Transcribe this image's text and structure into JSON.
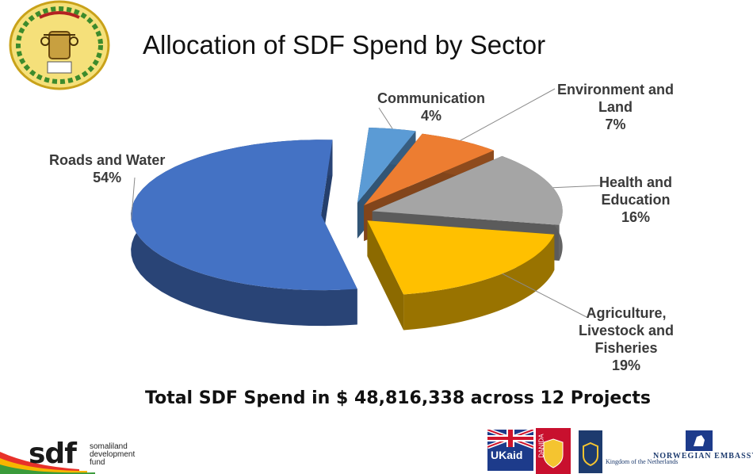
{
  "title": "Allocation of SDF Spend by Sector",
  "chart_data": {
    "type": "pie",
    "title": "Allocation of SDF Spend by Sector",
    "labels": [
      "Communication",
      "Environment and Land",
      "Health and Education",
      "Agriculture, Livestock and Fisheries",
      "Roads and Water"
    ],
    "values": [
      4,
      7,
      16,
      19,
      54
    ],
    "unit": "%",
    "colors": [
      "#5b9bd5",
      "#ed7d31",
      "#a5a5a5",
      "#ffc000",
      "#4472c4"
    ],
    "exploded": true,
    "three_d": true,
    "data_labels": [
      {
        "lines": [
          "Communication",
          "4%"
        ]
      },
      {
        "lines": [
          "Environment and",
          "Land",
          "7%"
        ]
      },
      {
        "lines": [
          "Health and",
          "Education",
          "16%"
        ]
      },
      {
        "lines": [
          "Agriculture,",
          "Livestock and",
          "Fisheries",
          "19%"
        ]
      },
      {
        "lines": [
          "Roads and Water",
          "54%"
        ]
      }
    ]
  },
  "subtitle_total": "Total SDF Spend in $ 48,816,338 across 12 Projects",
  "logos": {
    "sdf": {
      "word": "sdf",
      "lines": [
        "somaliland",
        "development",
        "fund"
      ]
    },
    "ukaid": {
      "text": "UKaid",
      "icon": "union-flag-icon"
    },
    "danida": {
      "text": "DANIDA",
      "icon": "danish-crest-icon"
    },
    "netherlands": {
      "text": "Kingdom of the Netherlands",
      "icon": "dutch-crest-icon"
    },
    "norway": {
      "text": "NORWEGIAN EMBASSY",
      "icon": "norwegian-lion-icon"
    },
    "seal": {
      "icon": "somaliland-coat-of-arms-icon"
    }
  }
}
